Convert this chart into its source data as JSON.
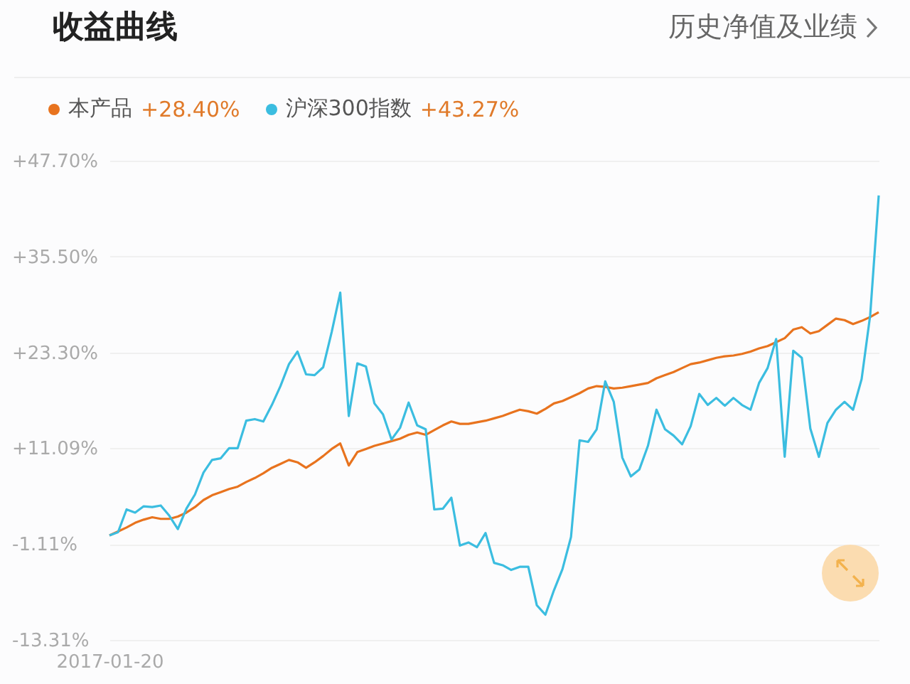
{
  "chart_data": {
    "type": "line",
    "title": "收益曲线",
    "annotations": [
      "历史净值及业绩",
      "+28.40%",
      "+43.27%"
    ],
    "categories": [
      "2017-01-20",
      null,
      null,
      null,
      null,
      null,
      null,
      null,
      null,
      null,
      null,
      null,
      null,
      null,
      null,
      null,
      null,
      null,
      null,
      null,
      null,
      null,
      null,
      null,
      null,
      null,
      null,
      null,
      null,
      null,
      null,
      null,
      null,
      null,
      null,
      null,
      null,
      null,
      null,
      null,
      null,
      null,
      null,
      null,
      null,
      null,
      null,
      null,
      null,
      null,
      null,
      null,
      null,
      null,
      null,
      null,
      null,
      null,
      null,
      null,
      null,
      null,
      null,
      null,
      null,
      null,
      null,
      null,
      null,
      null,
      null,
      null,
      null,
      null,
      null,
      null,
      null,
      null,
      null,
      null,
      null,
      null,
      null,
      null,
      null,
      null,
      null,
      null,
      null,
      null,
      null
    ],
    "series": [
      {
        "name": "本产品",
        "color": "#e8731e",
        "values": [
          0,
          0.5,
          1.0,
          1.6,
          2.0,
          2.3,
          2.1,
          2.1,
          2.4,
          2.9,
          3.6,
          4.5,
          5.1,
          5.5,
          5.9,
          6.2,
          6.8,
          7.3,
          7.9,
          8.6,
          9.1,
          9.6,
          9.3,
          8.6,
          9.3,
          10.1,
          11.0,
          11.7,
          8.9,
          10.6,
          11.0,
          11.4,
          11.7,
          12.0,
          12.3,
          12.8,
          13.1,
          12.8,
          13.4,
          14.0,
          14.5,
          14.2,
          14.2,
          14.4,
          14.6,
          14.9,
          15.2,
          15.6,
          16.0,
          15.8,
          15.5,
          16.1,
          16.8,
          17.1,
          17.6,
          18.1,
          18.7,
          19.0,
          18.9,
          18.7,
          18.8,
          19.0,
          19.2,
          19.4,
          20.0,
          20.4,
          20.8,
          21.3,
          21.8,
          22.0,
          22.3,
          22.6,
          22.8,
          22.9,
          23.1,
          23.4,
          23.8,
          24.1,
          24.6,
          25.1,
          26.2,
          26.5,
          25.7,
          26.0,
          26.8,
          27.6,
          27.4,
          26.9,
          27.3,
          27.8,
          28.4
        ]
      },
      {
        "name": "沪深300指数",
        "color": "#3bbde0",
        "values": [
          0,
          0.4,
          3.3,
          2.9,
          3.7,
          3.6,
          3.8,
          2.5,
          0.8,
          3.4,
          5.2,
          8.0,
          9.6,
          9.8,
          11.1,
          11.1,
          14.6,
          14.8,
          14.5,
          16.6,
          19.0,
          21.8,
          23.4,
          20.5,
          20.4,
          21.4,
          25.9,
          30.9,
          15.2,
          21.9,
          21.5,
          16.8,
          15.4,
          12.2,
          13.7,
          16.9,
          14.0,
          13.5,
          3.3,
          3.4,
          4.8,
          -1.3,
          -0.9,
          -1.5,
          0.3,
          -3.5,
          -3.8,
          -4.4,
          -4.0,
          -4.0,
          -8.9,
          -10.1,
          -7.0,
          -4.3,
          -0.2,
          12.1,
          11.9,
          13.5,
          19.6,
          17.0,
          9.9,
          7.5,
          8.4,
          11.4,
          16.0,
          13.5,
          12.7,
          11.6,
          13.9,
          18.0,
          16.6,
          17.5,
          16.5,
          17.5,
          16.6,
          16.0,
          19.4,
          21.3,
          25.0,
          10.0,
          23.5,
          22.6,
          13.6,
          10.0,
          14.3,
          16.0,
          17.0,
          16.0,
          19.9,
          28.0,
          43.27
        ]
      }
    ],
    "ylim": [
      -13.31,
      47.7
    ],
    "yticks": [
      {
        "value": 47.7,
        "label": "+47.70%"
      },
      {
        "value": 35.5,
        "label": "+35.50%"
      },
      {
        "value": 23.3,
        "label": "+23.30%"
      },
      {
        "value": 11.09,
        "label": "+11.09%"
      },
      {
        "value": -1.11,
        "label": "-1.11%"
      },
      {
        "value": -13.31,
        "label": "-13.31%"
      }
    ],
    "grid": "y",
    "legend": "top left",
    "marker": "none",
    "line_style": "solid"
  }
}
